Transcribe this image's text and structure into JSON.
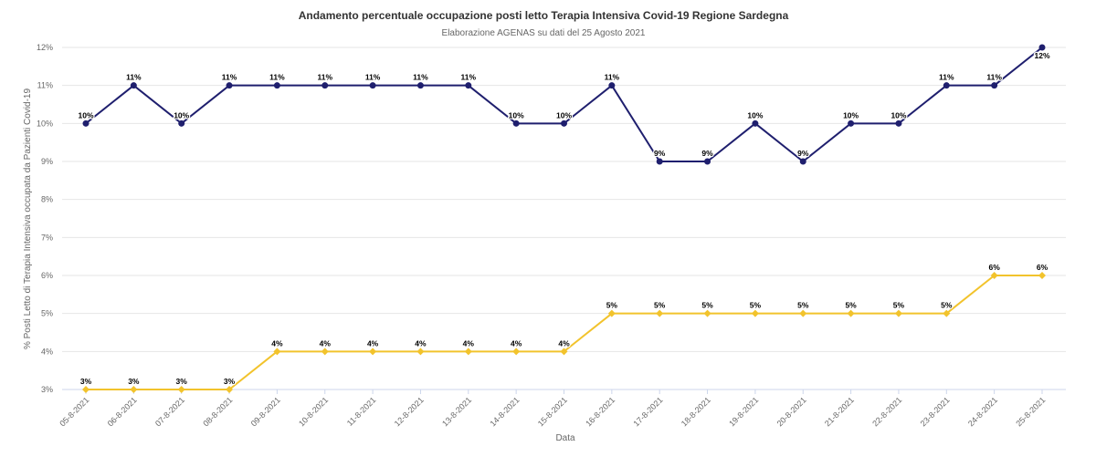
{
  "chart_data": {
    "type": "line",
    "title": "Andamento percentuale occupazione posti letto Terapia Intensiva Covid-19 Regione Sardegna",
    "subtitle": "Elaborazione AGENAS su dati del 25 Agosto 2021",
    "xlabel": "Data",
    "ylabel": "% Posti Letto di Terapia Intensiva occupata da Pazienti Covid-19",
    "ylim": [
      3,
      12
    ],
    "y_ticks": [
      "3%",
      "4%",
      "5%",
      "6%",
      "7%",
      "8%",
      "9%",
      "10%",
      "11%",
      "12%"
    ],
    "grid": true,
    "categories": [
      "05-8-2021",
      "06-8-2021",
      "07-8-2021",
      "08-8-2021",
      "09-8-2021",
      "10-8-2021",
      "11-8-2021",
      "12-8-2021",
      "13-8-2021",
      "14-8-2021",
      "15-8-2021",
      "16-8-2021",
      "17-8-2021",
      "18-8-2021",
      "19-8-2021",
      "20-8-2021",
      "21-8-2021",
      "22-8-2021",
      "23-8-2021",
      "24-8-2021",
      "25-8-2021"
    ],
    "series": [
      {
        "color": "#1f1f6e",
        "marker": "circle",
        "values": [
          10,
          11,
          10,
          11,
          11,
          11,
          11,
          11,
          11,
          10,
          10,
          11,
          9,
          9,
          10,
          9,
          10,
          10,
          11,
          11,
          12
        ],
        "labels": [
          "10%",
          "11%",
          "10%",
          "11%",
          "11%",
          "11%",
          "11%",
          "11%",
          "11%",
          "10%",
          "10%",
          "11%",
          "9%",
          "9%",
          "10%",
          "9%",
          "10%",
          "10%",
          "11%",
          "11%",
          "12%"
        ]
      },
      {
        "color": "#f2c32c",
        "marker": "diamond",
        "values": [
          3,
          3,
          3,
          3,
          4,
          4,
          4,
          4,
          4,
          4,
          4,
          5,
          5,
          5,
          5,
          5,
          5,
          5,
          5,
          6,
          6
        ],
        "labels": [
          "3%",
          "3%",
          "3%",
          "3%",
          "4%",
          "4%",
          "4%",
          "4%",
          "4%",
          "4%",
          "4%",
          "5%",
          "5%",
          "5%",
          "5%",
          "5%",
          "5%",
          "5%",
          "5%",
          "6%",
          "6%"
        ]
      }
    ]
  }
}
